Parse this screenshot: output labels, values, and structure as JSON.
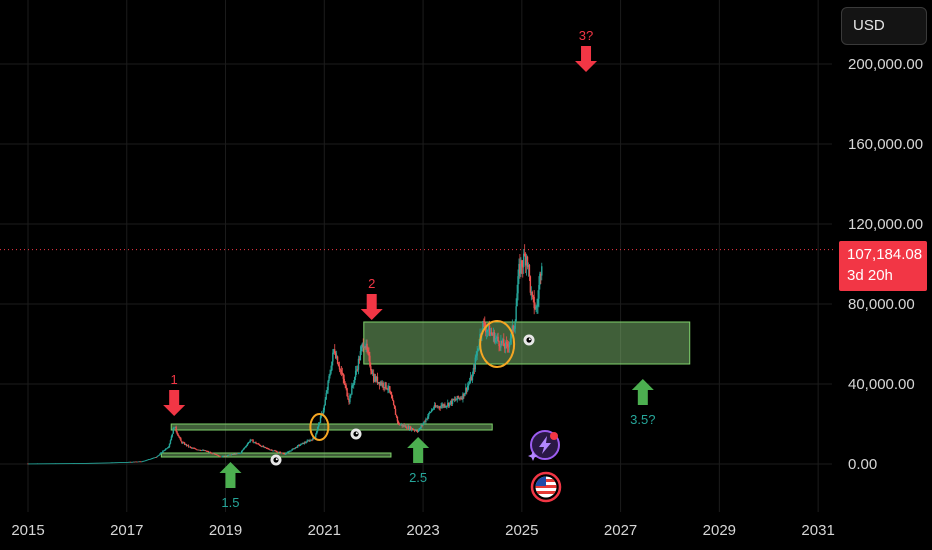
{
  "currency_button": {
    "label": "USD"
  },
  "price_tag": {
    "price": "107,184.08",
    "countdown": "3d 20h"
  },
  "colors": {
    "up": "#26a69a",
    "down": "#ef5350",
    "price_line": "#f23645",
    "zone": "#8fd37f",
    "arrow_red": "#f23645",
    "arrow_green": "#4caf50",
    "circle": "#f5a623"
  },
  "chart_data": {
    "type": "candlestick",
    "x_ticks": [
      "2015",
      "2017",
      "2019",
      "2021",
      "2023",
      "2025",
      "2027",
      "2029",
      "2031"
    ],
    "y_ticks": [
      "0.00",
      "40,000.00",
      "80,000.00",
      "120,000.00",
      "160,000.00",
      "200,000.00"
    ],
    "ylim": [
      -24000,
      232000
    ],
    "xlim": [
      2015.0,
      2031.2
    ],
    "grid": true,
    "current_price": 107184.08,
    "series_close": [
      [
        2015.0,
        250
      ],
      [
        2016.0,
        420
      ],
      [
        2016.5,
        650
      ],
      [
        2017.0,
        1000
      ],
      [
        2017.3,
        1300
      ],
      [
        2017.6,
        3500
      ],
      [
        2017.85,
        9000
      ],
      [
        2017.96,
        19000
      ],
      [
        2018.1,
        11000
      ],
      [
        2018.3,
        8000
      ],
      [
        2018.6,
        6500
      ],
      [
        2018.9,
        3700
      ],
      [
        2019.3,
        5500
      ],
      [
        2019.5,
        12000
      ],
      [
        2019.8,
        8000
      ],
      [
        2020.2,
        5000
      ],
      [
        2020.5,
        9500
      ],
      [
        2020.8,
        13000
      ],
      [
        2021.0,
        29000
      ],
      [
        2021.2,
        58000
      ],
      [
        2021.5,
        32000
      ],
      [
        2021.8,
        62000
      ],
      [
        2022.0,
        43000
      ],
      [
        2022.3,
        38000
      ],
      [
        2022.5,
        20000
      ],
      [
        2022.9,
        16500
      ],
      [
        2023.2,
        28000
      ],
      [
        2023.5,
        30000
      ],
      [
        2023.8,
        34000
      ],
      [
        2024.0,
        44000
      ],
      [
        2024.2,
        70000
      ],
      [
        2024.5,
        62000
      ],
      [
        2024.7,
        58000
      ],
      [
        2024.85,
        70000
      ],
      [
        2024.95,
        98000
      ],
      [
        2025.1,
        105000
      ],
      [
        2025.2,
        82000
      ],
      [
        2025.3,
        77000
      ],
      [
        2025.42,
        107184
      ]
    ],
    "zones": [
      {
        "from": 2017.9,
        "to": 2024.4,
        "low": 17000,
        "high": 20000
      },
      {
        "from": 2017.7,
        "to": 2022.35,
        "low": 3500,
        "high": 5500
      },
      {
        "from": 2021.8,
        "to": 2028.4,
        "low": 50000,
        "high": 71000
      }
    ],
    "annotations": [
      {
        "label": "1",
        "x": 2017.96,
        "y": 24000,
        "dir": "down"
      },
      {
        "label": "2",
        "x": 2021.96,
        "y": 72000,
        "dir": "down"
      },
      {
        "label": "3?",
        "x": 2026.3,
        "y": 196000,
        "dir": "down"
      },
      {
        "label": "1.5",
        "x": 2019.1,
        "y": 1000,
        "dir": "up"
      },
      {
        "label": "2.5",
        "x": 2022.9,
        "y": 13500,
        "dir": "up"
      },
      {
        "label": "3.5?",
        "x": 2027.45,
        "y": 42500,
        "dir": "up"
      }
    ],
    "circles": [
      {
        "x": 2020.9,
        "y": 18500
      },
      {
        "x": 2024.5,
        "y": 60000
      }
    ]
  }
}
